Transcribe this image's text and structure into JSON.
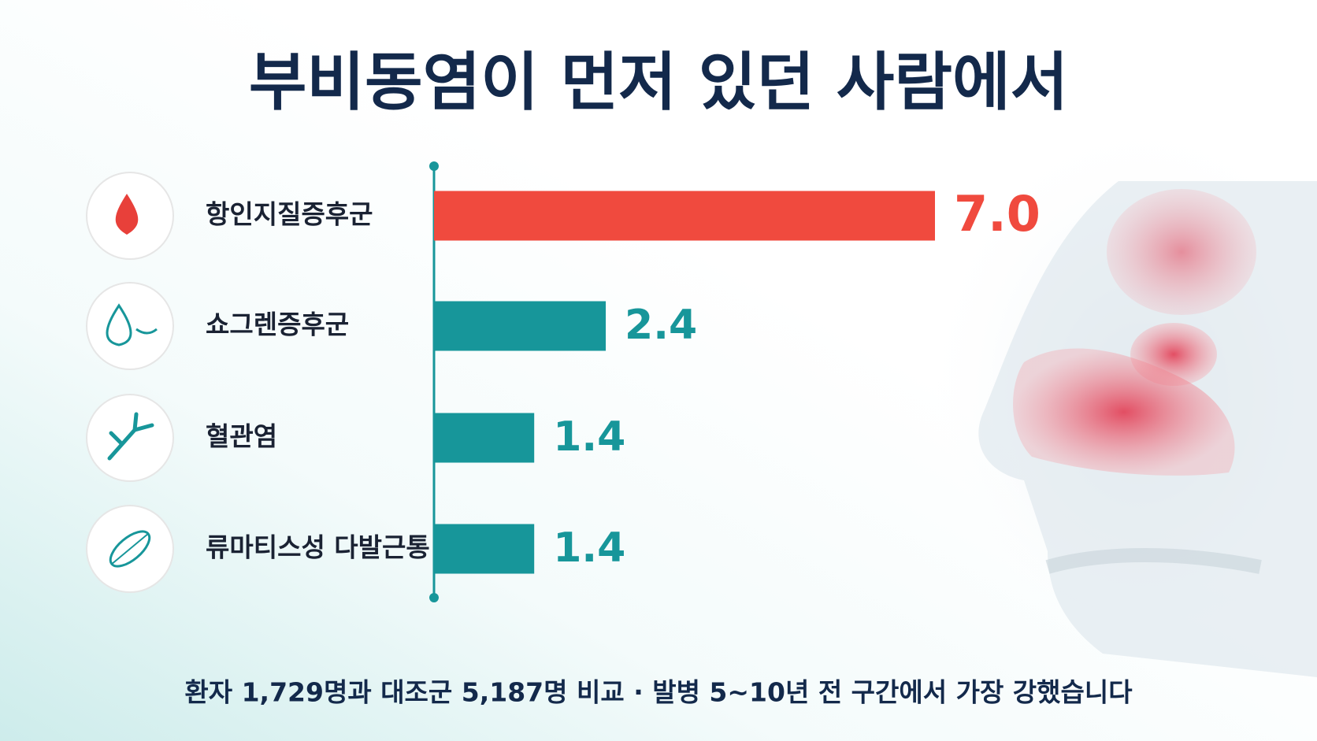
{
  "chart_data": {
    "type": "bar",
    "orientation": "horizontal",
    "title": "부비동염이 먼저 있던 사람에서",
    "categories": [
      "항인지질증후군",
      "쇼그렌증후군",
      "혈관염",
      "류마티스성 다발근통"
    ],
    "values": [
      7.0,
      2.4,
      1.4,
      1.4
    ],
    "value_labels": [
      "7.0",
      "2.4",
      "1.4",
      "1.4"
    ],
    "colors": [
      "#f04a3e",
      "#17969a",
      "#17969a",
      "#17969a"
    ],
    "footnote": "환자 1,729명과 대조군 5,187명 비교 · 발병 5~10년 전 구간에서 가장 강했습니다"
  }
}
